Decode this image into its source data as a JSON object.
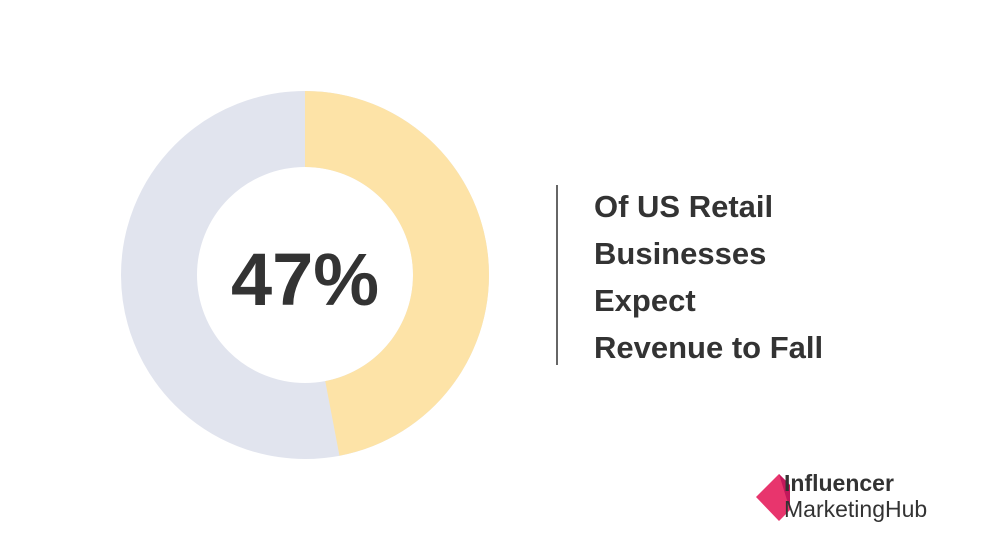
{
  "chart_data": {
    "type": "donut",
    "values": [
      47
    ],
    "value_labels": [
      "47%"
    ],
    "total": 100,
    "color": "#fde3a7",
    "track_color": "#e1e4ee",
    "annotation": [
      "Of US Retail",
      "Businesses",
      "Expect",
      "Revenue to Fall"
    ]
  },
  "logo": [
    "Influencer",
    "MarketingHub"
  ]
}
